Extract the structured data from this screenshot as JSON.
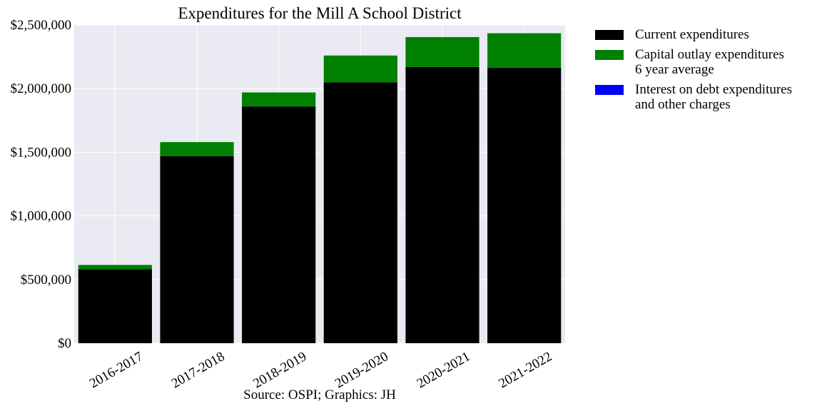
{
  "chart_data": {
    "type": "bar",
    "stacked": true,
    "title": "Expenditures for the Mill A School District",
    "xlabel": "",
    "ylabel": "",
    "source": "Source: OSPI; Graphics: JH",
    "categories": [
      "2016-2017",
      "2017-2018",
      "2018-2019",
      "2019-2020",
      "2020-2021",
      "2021-2022"
    ],
    "ylim": [
      0,
      2500000
    ],
    "yticks": [
      0,
      500000,
      1000000,
      1500000,
      2000000,
      2500000
    ],
    "ytick_labels": [
      "$0",
      "$500,000",
      "$1,000,000",
      "$1,500,000",
      "$2,000,000",
      "$2,500,000"
    ],
    "grid": true,
    "legend_position": "outside-right",
    "series": [
      {
        "name": "Current expenditures",
        "color": "#000000",
        "values": [
          580000,
          1470000,
          1860000,
          2050000,
          2170000,
          2165000
        ]
      },
      {
        "name": "Capital outlay expenditures\n6 year average",
        "color": "#008000",
        "values": [
          35000,
          110000,
          110000,
          210000,
          235000,
          270000
        ]
      },
      {
        "name": "Interest on debt expenditures\nand other charges",
        "color": "#0000ff",
        "values": [
          0,
          0,
          0,
          0,
          0,
          0
        ]
      }
    ]
  },
  "colors": {
    "plot_background": "#eaeaf2",
    "grid": "#ffffff"
  }
}
